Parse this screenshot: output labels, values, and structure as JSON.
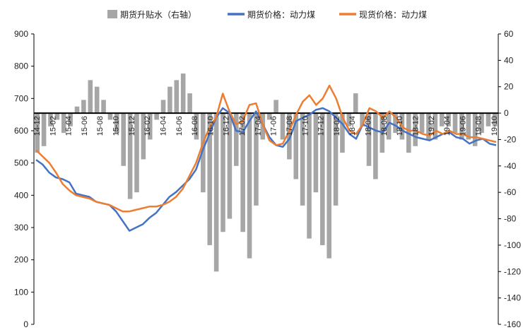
{
  "chart_data": {
    "type": "line+bar",
    "title": "",
    "legend": [
      {
        "label": "期货升贴水（右轴）",
        "color": "#a6a6a6",
        "kind": "bar"
      },
      {
        "label": "期货价格：动力煤",
        "color": "#4472c4",
        "kind": "line"
      },
      {
        "label": "现货价格：动力煤",
        "color": "#ed7d31",
        "kind": "line"
      }
    ],
    "legend_position": "top",
    "left_axis": {
      "min": 0,
      "max": 900,
      "step": 100,
      "ticks": [
        "0",
        "100",
        "200",
        "300",
        "400",
        "500",
        "600",
        "700",
        "800",
        "900"
      ]
    },
    "right_axis": {
      "min": -160,
      "max": 60,
      "step": 20,
      "ticks": [
        "-160",
        "-140",
        "-120",
        "-100",
        "-80",
        "-60",
        "-40",
        "-20",
        "0",
        "20",
        "40",
        "60"
      ]
    },
    "x_ticks": [
      "14-12",
      "15-02",
      "15-04",
      "15-06",
      "15-08",
      "15-10",
      "15-12",
      "16-02",
      "16-04",
      "16-06",
      "16-08",
      "16-10",
      "16-12",
      "17-02",
      "17-04",
      "17-06",
      "17-08",
      "17-10",
      "17-12",
      "18-02",
      "18-04",
      "18-06",
      "18-08",
      "18-10",
      "18-12",
      "19-02",
      "19-04",
      "19-06",
      "19-08",
      "19-10"
    ],
    "series": [
      {
        "name": "期货价格：动力煤",
        "axis": "left",
        "color": "#4472c4",
        "values": [
          510,
          495,
          470,
          455,
          450,
          440,
          405,
          400,
          395,
          380,
          375,
          370,
          350,
          320,
          290,
          300,
          310,
          330,
          345,
          370,
          395,
          410,
          430,
          450,
          480,
          540,
          590,
          640,
          670,
          655,
          600,
          595,
          630,
          660,
          620,
          580,
          555,
          550,
          575,
          630,
          640,
          650,
          665,
          670,
          660,
          640,
          620,
          590,
          575,
          620,
          610,
          600,
          595,
          625,
          615,
          600,
          590,
          580,
          575,
          570,
          580,
          590,
          595,
          580,
          575,
          560,
          570,
          575,
          560,
          555
        ]
      },
      {
        "name": "现货价格：动力煤",
        "axis": "left",
        "color": "#ed7d31",
        "values": [
          540,
          520,
          500,
          470,
          435,
          415,
          400,
          395,
          390,
          380,
          375,
          370,
          360,
          350,
          350,
          355,
          360,
          365,
          365,
          370,
          380,
          395,
          420,
          460,
          500,
          560,
          610,
          640,
          715,
          660,
          620,
          630,
          680,
          685,
          620,
          570,
          555,
          560,
          600,
          650,
          690,
          710,
          680,
          700,
          740,
          700,
          640,
          600,
          590,
          620,
          670,
          660,
          640,
          660,
          640,
          610,
          600,
          600,
          590,
          585,
          600,
          590,
          600,
          590,
          590,
          580,
          580,
          575,
          570,
          565
        ]
      },
      {
        "name": "期货升贴水（右轴）",
        "axis": "right",
        "color": "#a6a6a6",
        "values": [
          -30,
          -25,
          -10,
          -5,
          -15,
          -10,
          5,
          10,
          25,
          20,
          10,
          -5,
          -15,
          -40,
          -65,
          -60,
          -35,
          -20,
          -5,
          10,
          20,
          25,
          30,
          15,
          -20,
          -60,
          -100,
          -120,
          -90,
          -80,
          -40,
          -90,
          -110,
          -70,
          -20,
          -5,
          10,
          -20,
          -35,
          -50,
          -70,
          -95,
          -60,
          -100,
          -110,
          -70,
          -30,
          -10,
          15,
          -10,
          -40,
          -50,
          -30,
          -20,
          -15,
          -20,
          -30,
          -25,
          -15,
          -20,
          -20,
          -10,
          -10,
          -15,
          -20,
          -20,
          -25,
          -15,
          -10,
          -10
        ]
      }
    ],
    "grid": false
  }
}
